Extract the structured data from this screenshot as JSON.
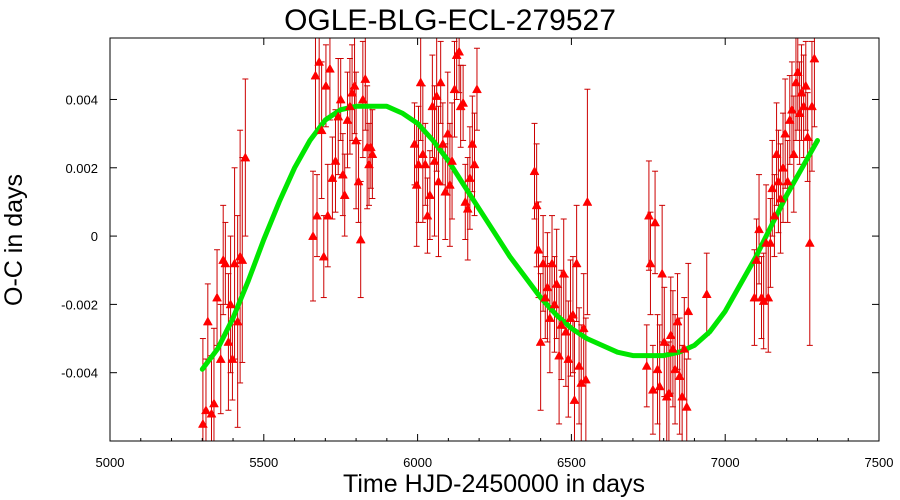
{
  "chart_data": {
    "type": "scatter",
    "title": "OGLE-BLG-ECL-279527",
    "xlabel": "Time HJD-2450000 in days",
    "ylabel": "O-C in days",
    "xlim": [
      5000,
      7500
    ],
    "ylim": [
      -0.006,
      0.0058
    ],
    "x_ticks": [
      5000,
      5500,
      6000,
      6500,
      7000,
      7500
    ],
    "y_ticks": [
      -0.004,
      -0.002,
      0,
      0.002,
      0.004
    ],
    "x_tick_labels": [
      "5000",
      "5500",
      "6000",
      "6500",
      "7000",
      "7500"
    ],
    "y_tick_labels": [
      "-0.004",
      "-0.002",
      "0",
      "0.002",
      "0.004"
    ],
    "grid": false,
    "legend": "none",
    "colors": {
      "points": "#ff0000",
      "errorbars": "#cc0000",
      "fit": "#00e600",
      "axes": "#000000"
    },
    "series": [
      {
        "kind": "points-with-errorbars",
        "points": [
          {
            "x": 5302,
            "y": -0.0055,
            "err": 0.0025
          },
          {
            "x": 5312,
            "y": -0.0051,
            "err": 0.0015
          },
          {
            "x": 5318,
            "y": -0.0025,
            "err": 0.0011
          },
          {
            "x": 5330,
            "y": -0.0052,
            "err": 0.0017
          },
          {
            "x": 5338,
            "y": -0.0049,
            "err": 0.0022
          },
          {
            "x": 5348,
            "y": -0.0018,
            "err": 0.0014
          },
          {
            "x": 5360,
            "y": -0.0036,
            "err": 0.0016
          },
          {
            "x": 5368,
            "y": -0.0007,
            "err": 0.0016
          },
          {
            "x": 5375,
            "y": -0.0008,
            "err": 0.0012
          },
          {
            "x": 5385,
            "y": -0.0031,
            "err": 0.002
          },
          {
            "x": 5392,
            "y": -0.002,
            "err": 0.002
          },
          {
            "x": 5398,
            "y": -0.0036,
            "err": 0.0012
          },
          {
            "x": 5405,
            "y": -0.0008,
            "err": 0.0028
          },
          {
            "x": 5415,
            "y": -0.0025,
            "err": 0.0031
          },
          {
            "x": 5423,
            "y": -0.0006,
            "err": 0.0037
          },
          {
            "x": 5430,
            "y": -0.0007,
            "err": 0.003
          },
          {
            "x": 5440,
            "y": 0.0023,
            "err": 0.0023
          },
          {
            "x": 5660,
            "y": 0.0,
            "err": 0.0019
          },
          {
            "x": 5668,
            "y": 0.0047,
            "err": 0.0017
          },
          {
            "x": 5673,
            "y": 0.0006,
            "err": 0.0012
          },
          {
            "x": 5680,
            "y": 0.0051,
            "err": 0.002
          },
          {
            "x": 5688,
            "y": 0.0031,
            "err": 0.002
          },
          {
            "x": 5695,
            "y": -0.0006,
            "err": 0.0012
          },
          {
            "x": 5702,
            "y": 0.0044,
            "err": 0.0012
          },
          {
            "x": 5708,
            "y": 0.0006,
            "err": 0.0015
          },
          {
            "x": 5715,
            "y": 0.0049,
            "err": 0.0015
          },
          {
            "x": 5723,
            "y": 0.0017,
            "err": 0.0012
          },
          {
            "x": 5733,
            "y": 0.0022,
            "err": 0.0015
          },
          {
            "x": 5742,
            "y": 0.0035,
            "err": 0.0017
          },
          {
            "x": 5750,
            "y": 0.004,
            "err": 0.0012
          },
          {
            "x": 5757,
            "y": 0.0018,
            "err": 0.0012
          },
          {
            "x": 5763,
            "y": 0.0012,
            "err": 0.0012
          },
          {
            "x": 5772,
            "y": 0.0034,
            "err": 0.0014
          },
          {
            "x": 5780,
            "y": 0.0038,
            "err": 0.0014
          },
          {
            "x": 5787,
            "y": 0.0042,
            "err": 0.0014
          },
          {
            "x": 5795,
            "y": 0.0044,
            "err": 0.0014
          },
          {
            "x": 5800,
            "y": 0.0028,
            "err": 0.002
          },
          {
            "x": 5808,
            "y": 0.0016,
            "err": 0.0012
          },
          {
            "x": 5815,
            "y": -0.0001,
            "err": 0.0017
          },
          {
            "x": 5822,
            "y": 0.004,
            "err": 0.0017
          },
          {
            "x": 5830,
            "y": 0.0046,
            "err": 0.0015
          },
          {
            "x": 5836,
            "y": 0.0026,
            "err": 0.0018
          },
          {
            "x": 5842,
            "y": 0.0021,
            "err": 0.0012
          },
          {
            "x": 5848,
            "y": 0.0026,
            "err": 0.0012
          },
          {
            "x": 5853,
            "y": 0.0024,
            "err": 0.0013
          },
          {
            "x": 5990,
            "y": 0.0027,
            "err": 0.0012
          },
          {
            "x": 5997,
            "y": 0.0015,
            "err": 0.0018
          },
          {
            "x": 6003,
            "y": 0.0021,
            "err": 0.0017
          },
          {
            "x": 6010,
            "y": 0.0045,
            "err": 0.0017
          },
          {
            "x": 6017,
            "y": 0.0024,
            "err": 0.002
          },
          {
            "x": 6025,
            "y": 0.0021,
            "err": 0.0012
          },
          {
            "x": 6032,
            "y": 0.0006,
            "err": 0.0011
          },
          {
            "x": 6040,
            "y": 0.0012,
            "err": 0.0013
          },
          {
            "x": 6048,
            "y": 0.0038,
            "err": 0.0015
          },
          {
            "x": 6055,
            "y": 0.0022,
            "err": 0.0022
          },
          {
            "x": 6062,
            "y": 0.0041,
            "err": 0.0022
          },
          {
            "x": 6068,
            "y": 0.0016,
            "err": 0.0022
          },
          {
            "x": 6075,
            "y": 0.0045,
            "err": 0.0012
          },
          {
            "x": 6082,
            "y": 0.0027,
            "err": 0.0012
          },
          {
            "x": 6090,
            "y": 0.0013,
            "err": 0.0014
          },
          {
            "x": 6098,
            "y": 0.003,
            "err": 0.0018
          },
          {
            "x": 6105,
            "y": 0.0015,
            "err": 0.0018
          },
          {
            "x": 6112,
            "y": 0.0022,
            "err": 0.0017
          },
          {
            "x": 6120,
            "y": 0.0043,
            "err": 0.0014
          },
          {
            "x": 6127,
            "y": 0.0053,
            "err": 0.0013
          },
          {
            "x": 6135,
            "y": 0.0054,
            "err": 0.0012
          },
          {
            "x": 6140,
            "y": 0.0038,
            "err": 0.0012
          },
          {
            "x": 6148,
            "y": 0.0039,
            "err": 0.0011
          },
          {
            "x": 6155,
            "y": 0.001,
            "err": 0.0011
          },
          {
            "x": 6163,
            "y": 0.0008,
            "err": 0.0015
          },
          {
            "x": 6170,
            "y": 0.0017,
            "err": 0.0015
          },
          {
            "x": 6178,
            "y": 0.0027,
            "err": 0.0014
          },
          {
            "x": 6185,
            "y": 0.0021,
            "err": 0.0015
          },
          {
            "x": 6193,
            "y": 0.0043,
            "err": 0.0012
          },
          {
            "x": 6380,
            "y": 0.0019,
            "err": 0.0014
          },
          {
            "x": 6387,
            "y": 0.0009,
            "err": 0.0018
          },
          {
            "x": 6393,
            "y": -0.0004,
            "err": 0.0014
          },
          {
            "x": 6400,
            "y": -0.0031,
            "err": 0.002
          },
          {
            "x": 6408,
            "y": -0.0008,
            "err": 0.0014
          },
          {
            "x": 6415,
            "y": -0.0018,
            "err": 0.0012
          },
          {
            "x": 6422,
            "y": -0.0015,
            "err": 0.0016
          },
          {
            "x": 6430,
            "y": -0.0024,
            "err": 0.0016
          },
          {
            "x": 6437,
            "y": -0.0008,
            "err": 0.0014
          },
          {
            "x": 6445,
            "y": -0.002,
            "err": 0.0014
          },
          {
            "x": 6452,
            "y": -0.0014,
            "err": 0.0016
          },
          {
            "x": 6460,
            "y": -0.0035,
            "err": 0.002
          },
          {
            "x": 6467,
            "y": -0.0026,
            "err": 0.0016
          },
          {
            "x": 6475,
            "y": -0.0011,
            "err": 0.0016
          },
          {
            "x": 6482,
            "y": -0.0028,
            "err": 0.0016
          },
          {
            "x": 6490,
            "y": -0.0036,
            "err": 0.0017
          },
          {
            "x": 6497,
            "y": -0.0024,
            "err": 0.0017
          },
          {
            "x": 6505,
            "y": -0.0023,
            "err": 0.0017
          },
          {
            "x": 6510,
            "y": -0.0048,
            "err": 0.0023
          },
          {
            "x": 6517,
            "y": -0.0008,
            "err": 0.0017
          },
          {
            "x": 6525,
            "y": -0.0038,
            "err": 0.0017
          },
          {
            "x": 6532,
            "y": -0.0043,
            "err": 0.0017
          },
          {
            "x": 6540,
            "y": -0.0027,
            "err": 0.0016
          },
          {
            "x": 6547,
            "y": -0.0042,
            "err": 0.0018
          },
          {
            "x": 6552,
            "y": 0.001,
            "err": 0.0033
          },
          {
            "x": 6745,
            "y": -0.0038,
            "err": 0.0012
          },
          {
            "x": 6752,
            "y": 0.0006,
            "err": 0.0016
          },
          {
            "x": 6757,
            "y": -0.0008,
            "err": 0.0015
          },
          {
            "x": 6765,
            "y": -0.0045,
            "err": 0.0013
          },
          {
            "x": 6772,
            "y": 0.0004,
            "err": 0.0015
          },
          {
            "x": 6780,
            "y": -0.0039,
            "err": 0.0016
          },
          {
            "x": 6787,
            "y": -0.0044,
            "err": 0.0018
          },
          {
            "x": 6795,
            "y": -0.0011,
            "err": 0.002
          },
          {
            "x": 6802,
            "y": -0.0031,
            "err": 0.0016
          },
          {
            "x": 6810,
            "y": -0.0047,
            "err": 0.0015
          },
          {
            "x": 6817,
            "y": -0.0046,
            "err": 0.0015
          },
          {
            "x": 6823,
            "y": -0.0029,
            "err": 0.0017
          },
          {
            "x": 6830,
            "y": -0.0033,
            "err": 0.0017
          },
          {
            "x": 6837,
            "y": -0.0039,
            "err": 0.0016
          },
          {
            "x": 6845,
            "y": -0.0025,
            "err": 0.0014
          },
          {
            "x": 6852,
            "y": -0.0041,
            "err": 0.0017
          },
          {
            "x": 6860,
            "y": -0.0047,
            "err": 0.0015
          },
          {
            "x": 6867,
            "y": -0.0033,
            "err": 0.0015
          },
          {
            "x": 6875,
            "y": -0.005,
            "err": 0.0014
          },
          {
            "x": 6880,
            "y": -0.0022,
            "err": 0.0014
          },
          {
            "x": 6940,
            "y": -0.0017,
            "err": 0.0012
          },
          {
            "x": 7095,
            "y": -0.0018,
            "err": 0.0014
          },
          {
            "x": 7102,
            "y": -0.0007,
            "err": 0.0012
          },
          {
            "x": 7110,
            "y": 0.0002,
            "err": 0.0016
          },
          {
            "x": 7118,
            "y": -0.0018,
            "err": 0.0012
          },
          {
            "x": 7125,
            "y": -0.0019,
            "err": 0.0014
          },
          {
            "x": 7133,
            "y": -0.0002,
            "err": 0.0017
          },
          {
            "x": 7140,
            "y": -0.0018,
            "err": 0.0016
          },
          {
            "x": 7147,
            "y": -0.0002,
            "err": 0.0013
          },
          {
            "x": 7153,
            "y": 0.0014,
            "err": 0.0014
          },
          {
            "x": 7160,
            "y": 0.0006,
            "err": 0.0012
          },
          {
            "x": 7167,
            "y": 0.0024,
            "err": 0.0015
          },
          {
            "x": 7173,
            "y": 0.0016,
            "err": 0.0015
          },
          {
            "x": 7180,
            "y": 0.0011,
            "err": 0.0016
          },
          {
            "x": 7188,
            "y": 0.002,
            "err": 0.0016
          },
          {
            "x": 7195,
            "y": 0.003,
            "err": 0.0016
          },
          {
            "x": 7203,
            "y": 0.0016,
            "err": 0.0012
          },
          {
            "x": 7210,
            "y": 0.0034,
            "err": 0.0013
          },
          {
            "x": 7217,
            "y": 0.0037,
            "err": 0.0014
          },
          {
            "x": 7223,
            "y": 0.0024,
            "err": 0.0017
          },
          {
            "x": 7230,
            "y": 0.0045,
            "err": 0.0017
          },
          {
            "x": 7236,
            "y": 0.0048,
            "err": 0.0017
          },
          {
            "x": 7242,
            "y": 0.0036,
            "err": 0.0015
          },
          {
            "x": 7248,
            "y": 0.0042,
            "err": 0.0014
          },
          {
            "x": 7255,
            "y": 0.0038,
            "err": 0.0015
          },
          {
            "x": 7262,
            "y": 0.0044,
            "err": 0.0013
          },
          {
            "x": 7268,
            "y": 0.0029,
            "err": 0.0013
          },
          {
            "x": 7275,
            "y": -0.0002,
            "err": 0.003
          },
          {
            "x": 7282,
            "y": 0.0038,
            "err": 0.0019
          },
          {
            "x": 7290,
            "y": 0.0052,
            "err": 0.002
          }
        ]
      },
      {
        "kind": "fit-curve",
        "x": [
          5300,
          5350,
          5400,
          5450,
          5500,
          5550,
          5600,
          5650,
          5700,
          5750,
          5800,
          5850,
          5900,
          5950,
          6000,
          6050,
          6100,
          6150,
          6200,
          6250,
          6300,
          6350,
          6400,
          6450,
          6500,
          6550,
          6600,
          6650,
          6700,
          6750,
          6800,
          6850,
          6900,
          6950,
          7000,
          7050,
          7100,
          7150,
          7200,
          7250,
          7300
        ],
        "y": [
          -0.0039,
          -0.0033,
          -0.0024,
          -0.0013,
          -0.0001,
          0.001,
          0.002,
          0.0028,
          0.0034,
          0.0037,
          0.0038,
          0.0038,
          0.0038,
          0.0036,
          0.0033,
          0.0028,
          0.0022,
          0.0015,
          0.0008,
          0.0001,
          -0.0006,
          -0.0012,
          -0.0018,
          -0.0023,
          -0.0027,
          -0.003,
          -0.0032,
          -0.0034,
          -0.0035,
          -0.0035,
          -0.0035,
          -0.0034,
          -0.0032,
          -0.0028,
          -0.0022,
          -0.0014,
          -0.0006,
          0.0003,
          0.0012,
          0.002,
          0.0028
        ]
      }
    ]
  }
}
